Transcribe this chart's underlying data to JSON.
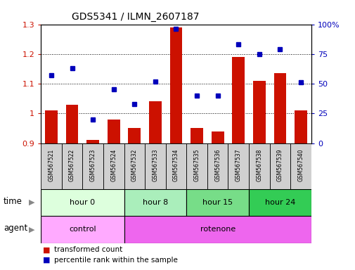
{
  "title": "GDS5341 / ILMN_2607187",
  "samples": [
    "GSM567521",
    "GSM567522",
    "GSM567523",
    "GSM567524",
    "GSM567532",
    "GSM567533",
    "GSM567534",
    "GSM567535",
    "GSM567536",
    "GSM567537",
    "GSM567538",
    "GSM567539",
    "GSM567540"
  ],
  "transformed_counts": [
    1.01,
    1.03,
    0.91,
    0.98,
    0.95,
    1.04,
    1.29,
    0.95,
    0.94,
    1.19,
    1.11,
    1.135,
    1.01
  ],
  "percentile_ranks": [
    57,
    63,
    20,
    45,
    33,
    52,
    96,
    40,
    40,
    83,
    75,
    79,
    51
  ],
  "ylim_left": [
    0.9,
    1.3
  ],
  "ylim_right": [
    0,
    100
  ],
  "yticks_left": [
    0.9,
    1.0,
    1.1,
    1.2,
    1.3
  ],
  "ytick_labels_left": [
    "0.9",
    "1",
    "1.1",
    "1.2",
    "1.3"
  ],
  "yticks_right": [
    0,
    25,
    50,
    75,
    100
  ],
  "ytick_labels_right": [
    "0",
    "25",
    "50",
    "75",
    "100%"
  ],
  "bar_color": "#cc1100",
  "dot_color": "#0000bb",
  "groups": [
    {
      "label": "hour 0",
      "start": 0,
      "end": 4,
      "color": "#ddffdd"
    },
    {
      "label": "hour 8",
      "start": 4,
      "end": 7,
      "color": "#aaeebb"
    },
    {
      "label": "hour 15",
      "start": 7,
      "end": 10,
      "color": "#77dd88"
    },
    {
      "label": "hour 24",
      "start": 10,
      "end": 13,
      "color": "#33cc55"
    }
  ],
  "agents": [
    {
      "label": "control",
      "start": 0,
      "end": 4,
      "color": "#ffaaff"
    },
    {
      "label": "rotenone",
      "start": 4,
      "end": 13,
      "color": "#ee66ee"
    }
  ],
  "legend_items": [
    {
      "label": "transformed count",
      "color": "#cc1100"
    },
    {
      "label": "percentile rank within the sample",
      "color": "#0000bb"
    }
  ],
  "time_label": "time",
  "agent_label": "agent",
  "background_color": "#ffffff",
  "sample_bg_color": "#d0d0d0",
  "grid_color": "#000000",
  "tick_label_color_left": "#cc1100",
  "tick_label_color_right": "#0000bb"
}
